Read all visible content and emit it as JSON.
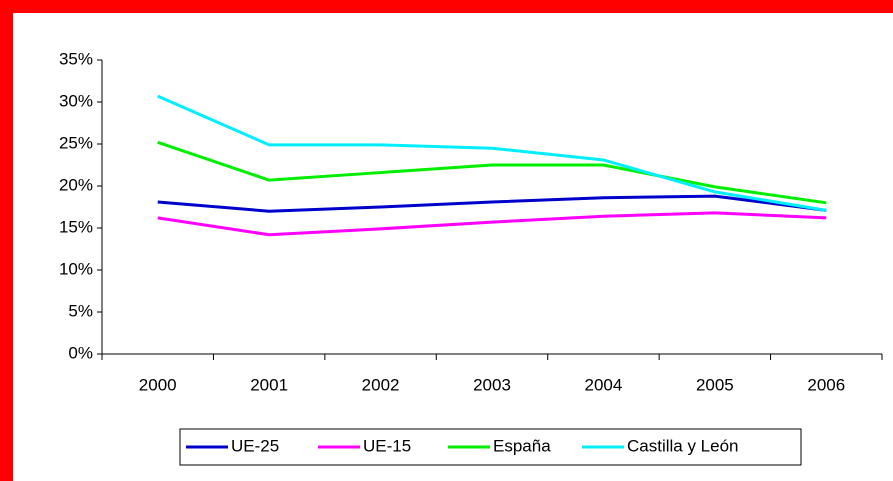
{
  "chart_data": {
    "type": "line",
    "categories": [
      "2000",
      "2001",
      "2002",
      "2003",
      "2004",
      "2005",
      "2006"
    ],
    "series": [
      {
        "name": "UE-25",
        "color": "#0000cc",
        "values": [
          18.1,
          17.0,
          17.5,
          18.1,
          18.6,
          18.8,
          17.1
        ]
      },
      {
        "name": "UE-15",
        "color": "#ff00ff",
        "values": [
          16.2,
          14.2,
          14.9,
          15.7,
          16.4,
          16.8,
          16.2
        ]
      },
      {
        "name": "España",
        "color": "#00ee00",
        "values": [
          25.2,
          20.7,
          21.6,
          22.5,
          22.5,
          19.9,
          18.0
        ]
      },
      {
        "name": "Castilla y León",
        "color": "#00eeff",
        "values": [
          30.7,
          24.9,
          24.9,
          24.5,
          23.1,
          19.3,
          17.1
        ]
      }
    ],
    "ylim": [
      0,
      35
    ],
    "yticks": [
      {
        "value": 0,
        "label": "0%"
      },
      {
        "value": 5,
        "label": "5%"
      },
      {
        "value": 10,
        "label": "10%"
      },
      {
        "value": 15,
        "label": "15%"
      },
      {
        "value": 20,
        "label": "20%"
      },
      {
        "value": 25,
        "label": "25%"
      },
      {
        "value": 30,
        "label": "30%"
      },
      {
        "value": 35,
        "label": "35%"
      }
    ],
    "legend": "bottom"
  }
}
